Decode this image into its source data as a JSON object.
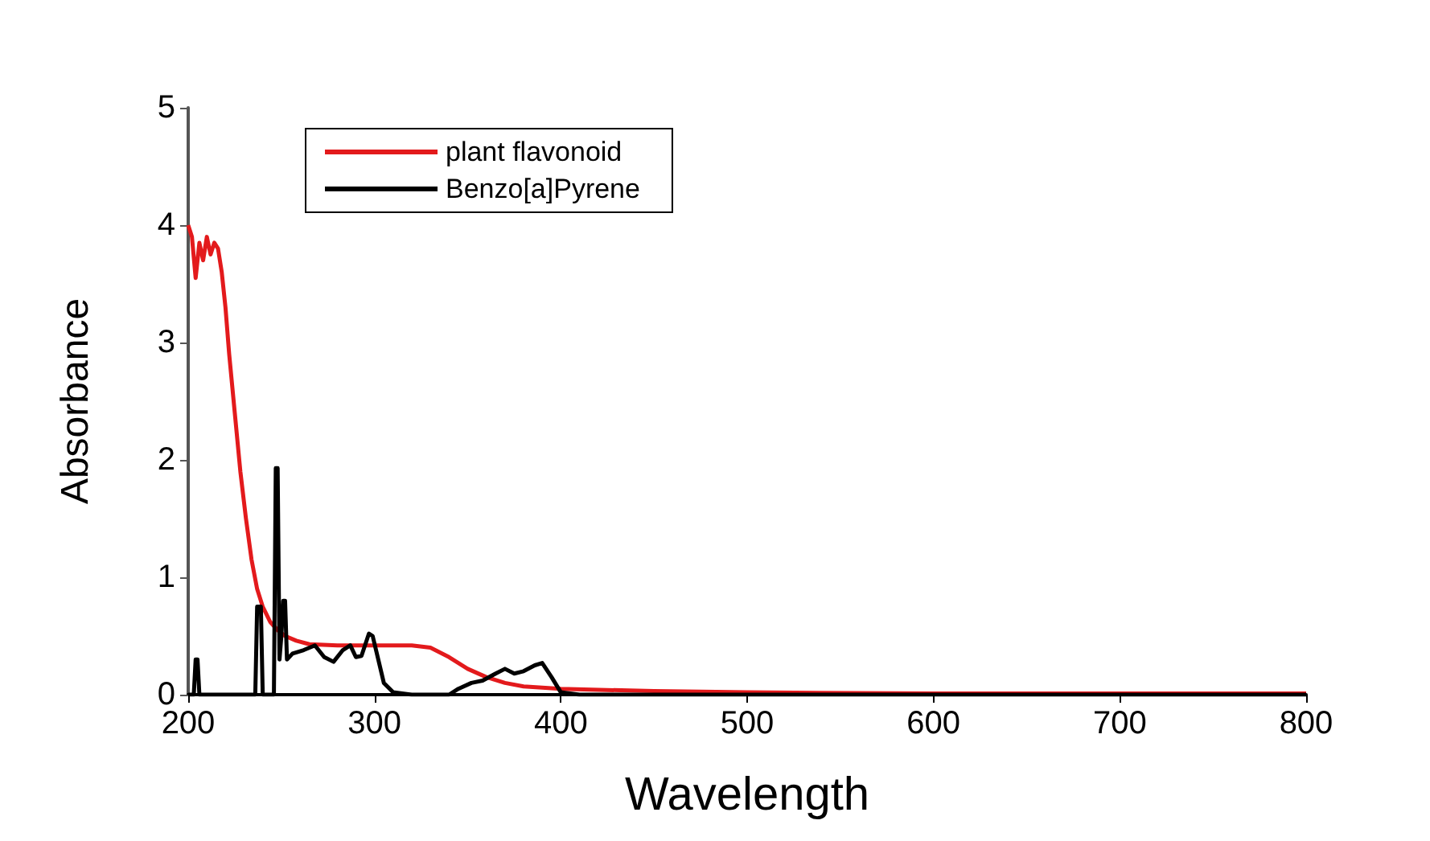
{
  "chart_data": {
    "type": "line",
    "xlabel": "Wavelength",
    "ylabel": "Absorbance",
    "xlim": [
      200,
      800
    ],
    "xticks": [
      200,
      300,
      400,
      500,
      600,
      700,
      800
    ],
    "ylim": [
      0,
      5
    ],
    "yticks": [
      0,
      1,
      2,
      3,
      4,
      5
    ],
    "grid": false,
    "legend": "top left",
    "marker": "none",
    "line_style": "solid",
    "series": [
      {
        "name": "plant flavonoid",
        "color": "#e31a1c",
        "x": [
          200,
          202,
          204,
          206,
          208,
          210,
          212,
          214,
          216,
          218,
          220,
          222,
          225,
          228,
          231,
          234,
          237,
          240,
          244,
          248,
          252,
          258,
          265,
          280,
          300,
          320,
          330,
          340,
          350,
          360,
          370,
          380,
          400,
          450,
          500,
          600,
          700,
          800
        ],
        "values": [
          4.0,
          3.9,
          3.55,
          3.85,
          3.7,
          3.9,
          3.75,
          3.85,
          3.8,
          3.6,
          3.3,
          2.9,
          2.4,
          1.9,
          1.5,
          1.15,
          0.9,
          0.75,
          0.62,
          0.55,
          0.5,
          0.46,
          0.43,
          0.42,
          0.42,
          0.42,
          0.4,
          0.32,
          0.22,
          0.15,
          0.1,
          0.07,
          0.05,
          0.03,
          0.02,
          0.01,
          0.01,
          0.01
        ]
      },
      {
        "name": "Benzo[a]Pyrene",
        "color": "#000000",
        "x": [
          200,
          203,
          204,
          205,
          206,
          236,
          237,
          239,
          240,
          246,
          247,
          248,
          249,
          250,
          251,
          252,
          253,
          256,
          262,
          268,
          273,
          278,
          283,
          287,
          290,
          293,
          297,
          299,
          302,
          305,
          310,
          320,
          340,
          345,
          352,
          358,
          365,
          370,
          375,
          380,
          386,
          390,
          395,
          400,
          410,
          800
        ],
        "values": [
          0,
          0,
          0.3,
          0.3,
          0,
          0,
          0.75,
          0.75,
          0,
          0,
          1.93,
          1.93,
          0.3,
          0.5,
          0.8,
          0.8,
          0.3,
          0.35,
          0.38,
          0.42,
          0.32,
          0.28,
          0.38,
          0.42,
          0.32,
          0.33,
          0.52,
          0.5,
          0.3,
          0.1,
          0.02,
          0,
          0,
          0.05,
          0.1,
          0.12,
          0.18,
          0.22,
          0.18,
          0.2,
          0.25,
          0.27,
          0.15,
          0.02,
          0,
          0
        ]
      }
    ]
  }
}
